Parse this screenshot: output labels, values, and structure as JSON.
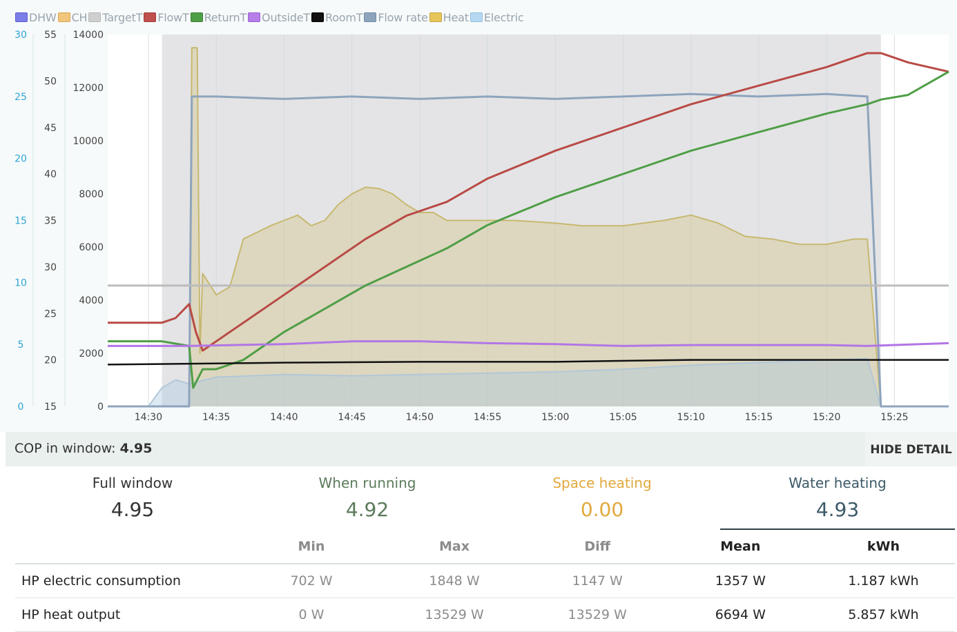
{
  "legend": [
    {
      "label": "DHW",
      "color": "#7b7de8",
      "border": "#5b5dd0"
    },
    {
      "label": "CH",
      "color": "#f1c57c",
      "border": "#d9a653"
    },
    {
      "label": "TargetT",
      "color": "#cfcfcf",
      "border": "#b5b5b5"
    },
    {
      "label": "FlowT",
      "color": "#c0504d",
      "border": "#a33b38"
    },
    {
      "label": "ReturnT",
      "color": "#4f9e46",
      "border": "#3a7f33"
    },
    {
      "label": "OutsideT",
      "color": "#b77ee8",
      "border": "#9a5fd1"
    },
    {
      "label": "RoomT",
      "color": "#111111",
      "border": "#000000"
    },
    {
      "label": "Flow rate",
      "color": "#8ea4bd",
      "border": "#6f89a6"
    },
    {
      "label": "Heat",
      "color": "#e6c55b",
      "border": "#c8a43c"
    },
    {
      "label": "Electric",
      "color": "#b6d7f2",
      "border": "#93bfe3"
    }
  ],
  "chart_data": {
    "type": "line",
    "x_ticks": [
      "14:30",
      "14:35",
      "14:40",
      "14:45",
      "14:50",
      "14:55",
      "15:00",
      "15:05",
      "15:10",
      "15:15",
      "15:20",
      "15:25"
    ],
    "axes": {
      "flow_rate": {
        "ticks": [
          "0",
          "5",
          "10",
          "15",
          "20",
          "25",
          "30"
        ],
        "range": [
          0,
          30
        ],
        "color": "#2fa4d6"
      },
      "temperature": {
        "ticks": [
          "15",
          "20",
          "25",
          "30",
          "35",
          "40",
          "45",
          "50",
          "55"
        ],
        "range": [
          15,
          55
        ]
      },
      "power": {
        "ticks": [
          "0",
          "2000",
          "4000",
          "6000",
          "8000",
          "10000",
          "12000",
          "14000"
        ],
        "range": [
          0,
          14000
        ]
      }
    },
    "shaded_running_region": [
      "14:31",
      "15:24"
    ],
    "series": [
      {
        "name": "Heat",
        "axis": "power",
        "points": [
          [
            "14:27",
            0
          ],
          [
            "14:33",
            0
          ],
          [
            "14:33.2",
            13500
          ],
          [
            "14:33.6",
            13500
          ],
          [
            "14:33.8",
            2000
          ],
          [
            "14:34",
            5000
          ],
          [
            "14:35",
            4200
          ],
          [
            "14:36",
            4500
          ],
          [
            "14:37",
            6300
          ],
          [
            "14:39",
            6800
          ],
          [
            "14:40",
            7000
          ],
          [
            "14:41",
            7200
          ],
          [
            "14:42",
            6800
          ],
          [
            "14:43",
            7000
          ],
          [
            "14:44",
            7600
          ],
          [
            "14:45",
            8000
          ],
          [
            "14:46",
            8250
          ],
          [
            "14:47",
            8200
          ],
          [
            "14:48",
            8000
          ],
          [
            "14:49",
            7600
          ],
          [
            "14:50",
            7300
          ],
          [
            "14:51",
            7300
          ],
          [
            "14:52",
            7000
          ],
          [
            "14:53",
            7000
          ],
          [
            "14:55",
            7000
          ],
          [
            "14:57",
            7000
          ],
          [
            "15:00",
            6900
          ],
          [
            "15:02",
            6800
          ],
          [
            "15:05",
            6800
          ],
          [
            "15:08",
            7000
          ],
          [
            "15:10",
            7200
          ],
          [
            "15:12",
            6900
          ],
          [
            "15:14",
            6400
          ],
          [
            "15:16",
            6300
          ],
          [
            "15:18",
            6100
          ],
          [
            "15:20",
            6100
          ],
          [
            "15:22",
            6300
          ],
          [
            "15:23",
            6300
          ],
          [
            "15:24",
            0
          ],
          [
            "15:29",
            0
          ]
        ]
      },
      {
        "name": "Electric",
        "axis": "power",
        "points": [
          [
            "14:27",
            0
          ],
          [
            "14:30",
            0
          ],
          [
            "14:31",
            700
          ],
          [
            "14:32",
            1000
          ],
          [
            "14:33",
            850
          ],
          [
            "14:35",
            1100
          ],
          [
            "14:40",
            1200
          ],
          [
            "14:45",
            1150
          ],
          [
            "14:50",
            1200
          ],
          [
            "14:55",
            1250
          ],
          [
            "15:00",
            1300
          ],
          [
            "15:05",
            1400
          ],
          [
            "15:10",
            1550
          ],
          [
            "15:15",
            1650
          ],
          [
            "15:20",
            1750
          ],
          [
            "15:23",
            1800
          ],
          [
            "15:24",
            0
          ],
          [
            "15:29",
            0
          ]
        ]
      },
      {
        "name": "Flow rate",
        "axis": "flow_rate",
        "points": [
          [
            "14:27",
            0
          ],
          [
            "14:33",
            0
          ],
          [
            "14:33.2",
            25
          ],
          [
            "14:35",
            25
          ],
          [
            "14:40",
            24.8
          ],
          [
            "14:45",
            25
          ],
          [
            "14:50",
            24.8
          ],
          [
            "14:55",
            25
          ],
          [
            "15:00",
            24.8
          ],
          [
            "15:05",
            25
          ],
          [
            "15:10",
            25.2
          ],
          [
            "15:15",
            25
          ],
          [
            "15:20",
            25.2
          ],
          [
            "15:23",
            25
          ],
          [
            "15:24",
            0
          ],
          [
            "15:29",
            0
          ]
        ]
      },
      {
        "name": "TargetT",
        "axis": "temperature",
        "points": [
          [
            "14:27",
            28
          ],
          [
            "15:29",
            28
          ]
        ]
      },
      {
        "name": "FlowT",
        "axis": "temperature",
        "points": [
          [
            "14:27",
            24
          ],
          [
            "14:31",
            24
          ],
          [
            "14:32",
            24.5
          ],
          [
            "14:33",
            26
          ],
          [
            "14:33.5",
            23
          ],
          [
            "14:34",
            21
          ],
          [
            "14:35",
            22
          ],
          [
            "14:37",
            24
          ],
          [
            "14:40",
            27
          ],
          [
            "14:43",
            30
          ],
          [
            "14:46",
            33
          ],
          [
            "14:49",
            35.5
          ],
          [
            "14:52",
            37
          ],
          [
            "14:55",
            39.5
          ],
          [
            "15:00",
            42.5
          ],
          [
            "15:05",
            45
          ],
          [
            "15:10",
            47.5
          ],
          [
            "15:15",
            49.5
          ],
          [
            "15:20",
            51.5
          ],
          [
            "15:23",
            53
          ],
          [
            "15:24",
            53
          ],
          [
            "15:26",
            52
          ],
          [
            "15:29",
            51
          ]
        ]
      },
      {
        "name": "ReturnT",
        "axis": "temperature",
        "points": [
          [
            "14:27",
            22
          ],
          [
            "14:31",
            22
          ],
          [
            "14:33",
            21.5
          ],
          [
            "14:33.3",
            17
          ],
          [
            "14:34",
            19
          ],
          [
            "14:35",
            19
          ],
          [
            "14:37",
            20
          ],
          [
            "14:40",
            23
          ],
          [
            "14:43",
            25.5
          ],
          [
            "14:46",
            28
          ],
          [
            "14:49",
            30
          ],
          [
            "14:52",
            32
          ],
          [
            "14:55",
            34.5
          ],
          [
            "15:00",
            37.5
          ],
          [
            "15:05",
            40
          ],
          [
            "15:10",
            42.5
          ],
          [
            "15:15",
            44.5
          ],
          [
            "15:20",
            46.5
          ],
          [
            "15:23",
            47.5
          ],
          [
            "15:24",
            48
          ],
          [
            "15:26",
            48.5
          ],
          [
            "15:29",
            51
          ]
        ]
      },
      {
        "name": "OutsideT",
        "axis": "temperature",
        "points": [
          [
            "14:27",
            21.5
          ],
          [
            "14:33",
            21.5
          ],
          [
            "14:40",
            21.7
          ],
          [
            "14:45",
            22
          ],
          [
            "14:50",
            22
          ],
          [
            "14:55",
            21.8
          ],
          [
            "15:00",
            21.7
          ],
          [
            "15:05",
            21.5
          ],
          [
            "15:10",
            21.6
          ],
          [
            "15:15",
            21.6
          ],
          [
            "15:20",
            21.6
          ],
          [
            "15:23",
            21.5
          ],
          [
            "15:29",
            21.8
          ]
        ]
      },
      {
        "name": "RoomT",
        "axis": "temperature",
        "points": [
          [
            "14:27",
            19.5
          ],
          [
            "14:40",
            19.7
          ],
          [
            "14:50",
            19.8
          ],
          [
            "15:00",
            19.8
          ],
          [
            "15:10",
            20
          ],
          [
            "15:20",
            20
          ],
          [
            "15:29",
            20
          ]
        ]
      }
    ]
  },
  "cop_bar": {
    "label": "COP in window: ",
    "value": "4.95",
    "button": "HIDE DETAIL"
  },
  "modes": {
    "full": {
      "title": "Full window",
      "value": "4.95"
    },
    "running": {
      "title": "When running",
      "value": "4.92"
    },
    "space": {
      "title": "Space heating",
      "value": "0.00"
    },
    "water": {
      "title": "Water heating",
      "value": "4.93"
    }
  },
  "stats": {
    "headers": [
      "",
      "Min",
      "Max",
      "Diff",
      "Mean",
      "kWh"
    ],
    "rows": [
      [
        "HP electric consumption",
        "702 W",
        "1848 W",
        "1147 W",
        "1357 W",
        "1.187 kWh"
      ],
      [
        "HP heat output",
        "0 W",
        "13529 W",
        "13529 W",
        "6694 W",
        "5.857 kWh"
      ]
    ]
  }
}
